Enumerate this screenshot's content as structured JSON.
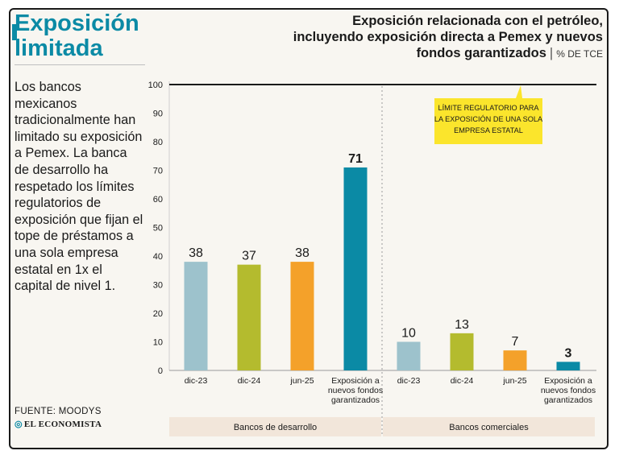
{
  "headline": {
    "line1": "Exposición",
    "line2": "limitada"
  },
  "body_text": "Los bancos mexicanos tradicionalmente han limitado su exposición a Pemex. La banca de desarrollo ha respetado los límites regulatorios de exposición que fijan el tope de préstamos a una sola empresa estatal en 1x el capital de nivel 1.",
  "source": "FUENTE: MOODYS",
  "brand": "EL ECONOMISTA",
  "chart_title": {
    "line1": "Exposición relacionada con el petróleo,",
    "line2": "incluyendo exposición directa a Pemex y nuevos",
    "line3": "fondos garantizados",
    "unit": "% DE TCE"
  },
  "colors": {
    "accent": "#0b8aa5",
    "light_blue": "#9dc2cc",
    "olive": "#b4bb2e",
    "orange": "#f4a12a",
    "teal": "#0b8aa5",
    "callout": "#fbe52c",
    "group_band": "#f2e6da"
  },
  "chart_data": {
    "type": "bar",
    "ylim": [
      0,
      100
    ],
    "yticks": [
      0,
      10,
      20,
      30,
      40,
      50,
      60,
      70,
      80,
      90,
      100
    ],
    "bars": [
      {
        "label": [
          "dic-23"
        ],
        "value": 38,
        "value_label": "38",
        "color": "#9dc2cc",
        "group": "Bancos de desarrollo"
      },
      {
        "label": [
          "dic-24"
        ],
        "value": 37,
        "value_label": "37",
        "color": "#b4bb2e",
        "group": "Bancos de desarrollo"
      },
      {
        "label": [
          "jun-25"
        ],
        "value": 38,
        "value_label": "38",
        "color": "#f4a12a",
        "group": "Bancos de desarrollo"
      },
      {
        "label": [
          "Exposición a",
          "nuevos fondos",
          "garantizados"
        ],
        "value": 71,
        "value_label": "71",
        "color": "#0b8aa5",
        "group": "Bancos de desarrollo",
        "bold_label": true
      },
      {
        "label": [
          "dic-23"
        ],
        "value": 10,
        "value_label": "10",
        "color": "#9dc2cc",
        "group": "Bancos comerciales"
      },
      {
        "label": [
          "dic-24"
        ],
        "value": 13,
        "value_label": "13",
        "color": "#b4bb2e",
        "group": "Bancos comerciales"
      },
      {
        "label": [
          "jun-25"
        ],
        "value": 7,
        "value_label": "7",
        "color": "#f4a12a",
        "group": "Bancos comerciales"
      },
      {
        "label": [
          "Exposición a",
          "nuevos fondos",
          "garantizados"
        ],
        "value": 3,
        "value_label": "3",
        "color": "#0b8aa5",
        "group": "Bancos comerciales",
        "bold_label": true
      }
    ],
    "groups": [
      "Bancos de desarrollo",
      "Bancos comerciales"
    ],
    "reference_line": {
      "value": 100,
      "label": [
        "LÍMITE REGULATORIO PARA",
        "LA EXPOSICIÓN DE UNA SOLA",
        "EMPRESA ESTATAL"
      ]
    },
    "grid": false
  }
}
